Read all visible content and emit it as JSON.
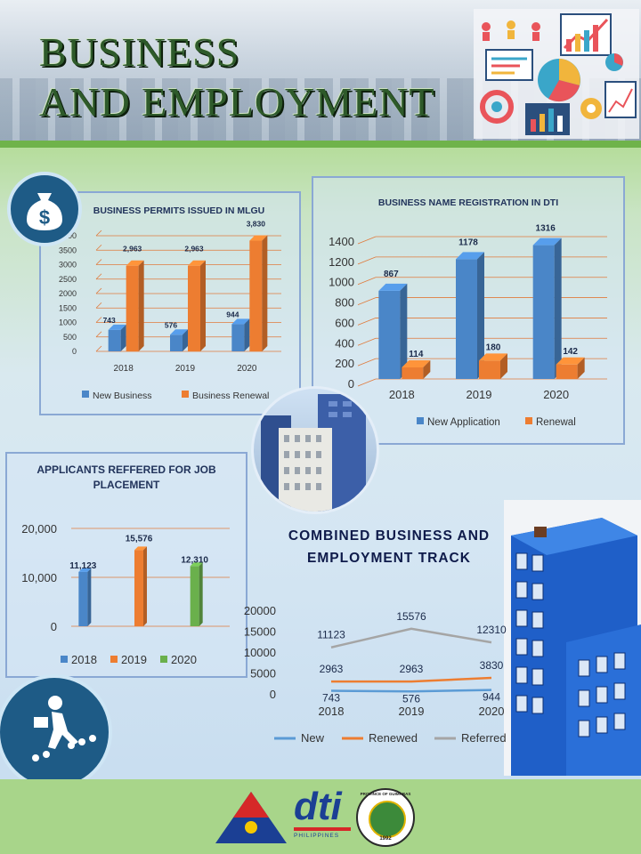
{
  "header": {
    "title_line1": "BUSINESS",
    "title_line2": "AND EMPLOYMENT"
  },
  "chart_data": [
    {
      "type": "bar",
      "title": "BUSINESS PERMITS ISSUED IN MLGU",
      "categories": [
        "2018",
        "2019",
        "2020"
      ],
      "series": [
        {
          "name": "New Business",
          "values": [
            743,
            576,
            944
          ],
          "labels": [
            "743",
            "576",
            "944"
          ],
          "color": "#4a86c8"
        },
        {
          "name": "Business Renewal",
          "values": [
            2963,
            2963,
            3830
          ],
          "labels": [
            "2,963",
            "2,963",
            "3,830"
          ],
          "color": "#ed7d31"
        }
      ],
      "ylim": [
        0,
        4000
      ],
      "yticks": [
        "0",
        "500",
        "1000",
        "1500",
        "2000",
        "2500",
        "3000",
        "3500",
        "4000"
      ],
      "legend": "bottom",
      "grid": true
    },
    {
      "type": "bar",
      "title": "BUSINESS NAME REGISTRATION IN DTI",
      "categories": [
        "2018",
        "2019",
        "2020"
      ],
      "series": [
        {
          "name": "New Application",
          "values": [
            867,
            1178,
            1316
          ],
          "labels": [
            "867",
            "1178",
            "1316"
          ],
          "color": "#4a86c8"
        },
        {
          "name": "Renewal",
          "values": [
            114,
            180,
            142
          ],
          "labels": [
            "114",
            "180",
            "142"
          ],
          "color": "#ed7d31"
        }
      ],
      "ylim": [
        0,
        1400
      ],
      "yticks": [
        "0",
        "200",
        "400",
        "600",
        "800",
        "1000",
        "1200",
        "1400"
      ],
      "legend": "bottom",
      "grid": true
    },
    {
      "type": "bar",
      "title": "APPLICANTS REFFERED  FOR JOB PLACEMENT",
      "categories": [
        "2018",
        "2019",
        "2020"
      ],
      "values": [
        11123,
        15576,
        12310
      ],
      "labels": [
        "11,123",
        "15,576",
        "12,310"
      ],
      "colors": [
        "#4a86c8",
        "#ed7d31",
        "#6ab04c"
      ],
      "ylim": [
        0,
        20000
      ],
      "yticks": [
        "0",
        "10,000",
        "20,000"
      ],
      "legend": "bottom",
      "grid": true
    },
    {
      "type": "line",
      "title": "COMBINED BUSINESS AND EMPLOYMENT TRACK",
      "categories": [
        "2018",
        "2019",
        "2020"
      ],
      "series": [
        {
          "name": "New",
          "values": [
            743,
            576,
            944
          ],
          "color": "#5b9bd5"
        },
        {
          "name": "Renewed",
          "values": [
            2963,
            2963,
            3830
          ],
          "color": "#ed7d31"
        },
        {
          "name": "Referred",
          "values": [
            11123,
            15576,
            12310
          ],
          "color": "#a5a5a5"
        }
      ],
      "ylim": [
        0,
        20000
      ],
      "yticks": [
        "0",
        "5000",
        "10000",
        "15000",
        "20000"
      ],
      "legend": "bottom",
      "grid": false
    }
  ],
  "icons": {
    "money_bag": "money-bag-icon",
    "climber": "career-climb-icon",
    "building": "building-illustration",
    "city_photo": "city-buildings-photo",
    "header_graphic": "analytics-collage-icon"
  },
  "logos": {
    "dti_text": "dti",
    "dti_subtext": "PHILIPPINES",
    "seal_text": "PROVINCE OF GUIMARAS",
    "seal_year": "1992"
  }
}
